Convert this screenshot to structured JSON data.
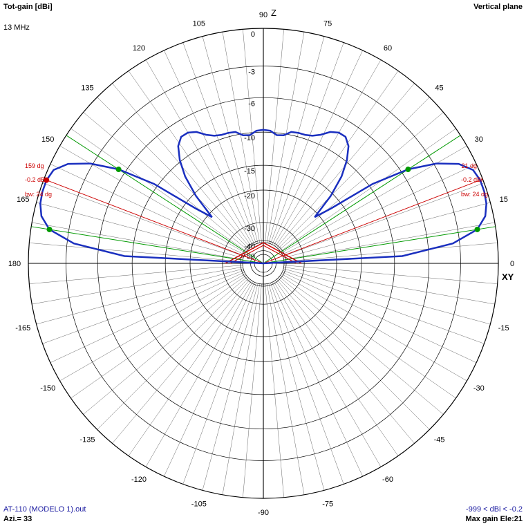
{
  "header": {
    "title": "Tot-gain [dBi]",
    "frequency": "13 MHz",
    "plane": "Vertical plane"
  },
  "footer": {
    "file": "AT-110 (MODELO 1).out",
    "azimuth": "Azi.= 33",
    "range": "-999 < dBi < -0.2",
    "max_gain": "Max gain Ele:21"
  },
  "colors": {
    "pattern": "#1a2fbf",
    "beam_lines": "#cc0000",
    "bw_lines": "#009900",
    "grid": "#000000",
    "text_blue": "#1a1aa0",
    "text_red": "#cc0000"
  },
  "chart_data": {
    "type": "polar",
    "title": "Tot-gain [dBi]",
    "angle_unit": "deg",
    "angle_labels": [
      "0",
      "15",
      "30",
      "45",
      "60",
      "75",
      "90",
      "105",
      "120",
      "135",
      "150",
      "165",
      "180",
      "-165",
      "-150",
      "-135",
      "-120",
      "-105",
      "-90",
      "-75",
      "-60",
      "-45",
      "-30",
      "-15"
    ],
    "angle_label_values": [
      0,
      15,
      30,
      45,
      60,
      75,
      90,
      105,
      120,
      135,
      150,
      165,
      180,
      -165,
      -150,
      -135,
      -120,
      -105,
      -90,
      -75,
      -60,
      -45,
      -30,
      -15
    ],
    "radial_labels": [
      "0",
      "-3",
      "-6",
      "-10",
      "-15",
      "-20",
      "-30",
      "-40",
      "-50"
    ],
    "radial_values": [
      0,
      -3,
      -6,
      -10,
      -15,
      -20,
      -30,
      -40,
      -50
    ],
    "axis_labels": {
      "vertical": "Z",
      "horizontal": "XY"
    },
    "series": [
      {
        "elevation_deg": [
          0,
          3,
          6,
          9,
          12,
          15,
          18,
          21,
          24,
          27,
          30,
          33,
          36,
          39,
          42,
          45,
          48,
          51,
          54,
          57,
          60,
          63,
          66,
          69,
          72,
          75,
          78,
          81,
          84,
          87,
          90,
          93,
          96,
          99,
          102,
          105,
          108,
          111,
          114,
          117,
          120,
          123,
          126,
          129,
          132,
          135,
          138,
          141,
          144,
          147,
          150,
          153,
          156,
          159,
          162,
          165,
          168,
          171,
          174,
          177,
          180
        ],
        "gain_dbi": [
          -999,
          -9,
          -3.6,
          -1.4,
          -0.6,
          -0.3,
          -0.2,
          -0.2,
          -0.4,
          -1.2,
          -2.8,
          -5.3,
          -9.5,
          -17,
          -21,
          -15.5,
          -12,
          -9.8,
          -8.3,
          -7.6,
          -7.6,
          -8,
          -8.8,
          -9.3,
          -9.5,
          -9.5,
          -9.6,
          -10.2,
          -10.3,
          -9.8,
          -9.7,
          -9.8,
          -10.3,
          -10.2,
          -9.6,
          -9.5,
          -9.5,
          -9.3,
          -8.8,
          -8,
          -7.6,
          -7.6,
          -8.3,
          -9.8,
          -12,
          -15.5,
          -21,
          -17,
          -9.5,
          -5.3,
          -2.8,
          -1.2,
          -0.4,
          -0.2,
          -0.2,
          -0.3,
          -0.6,
          -1.4,
          -3.6,
          -9,
          -999
        ]
      }
    ],
    "beam": {
      "labels_right": [
        "21 dg",
        "-0.2 dBi",
        "bw: 24 dg"
      ],
      "labels_left": [
        "159 dg",
        "-0.2 dBi",
        "bw: 24 dg"
      ],
      "max_elevation_deg": [
        21,
        159
      ],
      "bw_edges_deg": [
        9,
        33,
        147,
        171
      ]
    }
  }
}
